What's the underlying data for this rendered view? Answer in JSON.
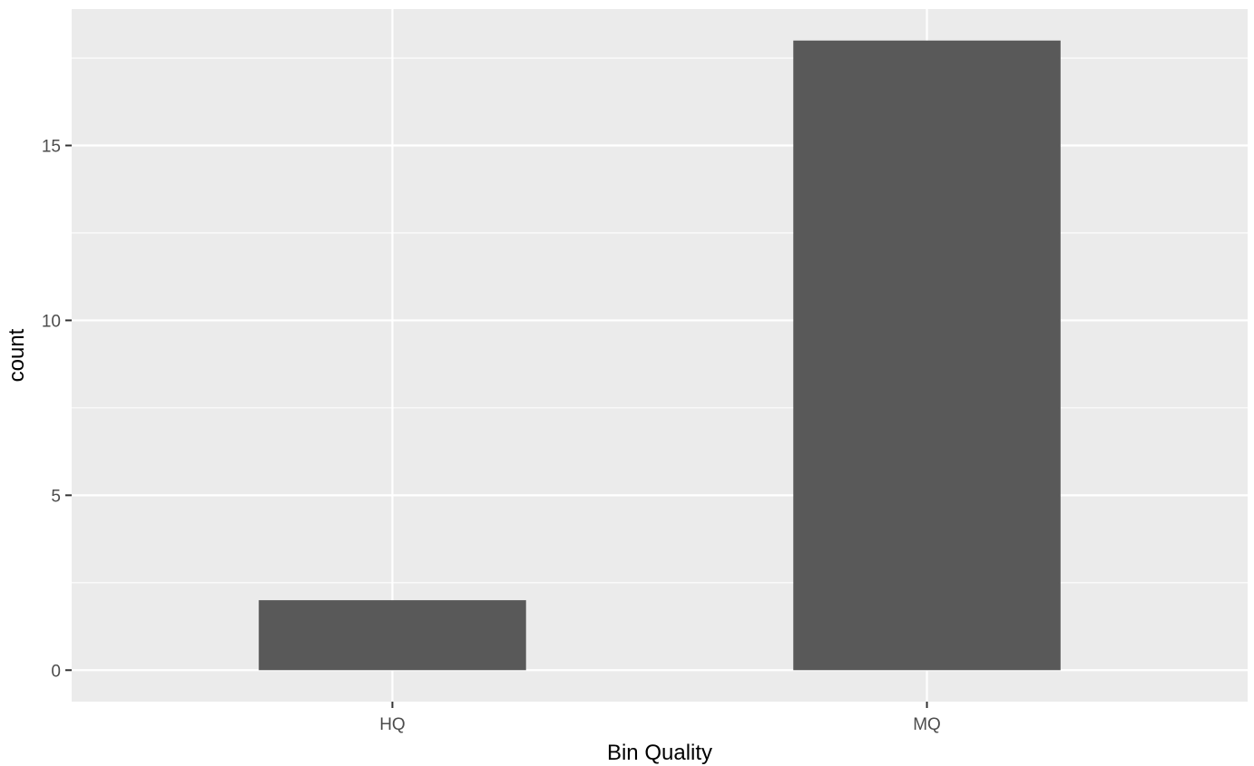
{
  "chart_data": {
    "type": "bar",
    "categories": [
      "HQ",
      "MQ"
    ],
    "values": [
      2,
      18
    ],
    "xlabel": "Bin Quality",
    "ylabel": "count",
    "ylim": [
      -0.9,
      18.9
    ],
    "yticks": [
      0,
      5,
      10,
      15
    ],
    "grid": true,
    "legend": "none",
    "colors": {
      "panel": "#ebebeb",
      "grid": "#ffffff",
      "bar": "#595959",
      "tick": "#333333",
      "tick_text": "#4d4d4d",
      "title_text": "#000000"
    }
  }
}
